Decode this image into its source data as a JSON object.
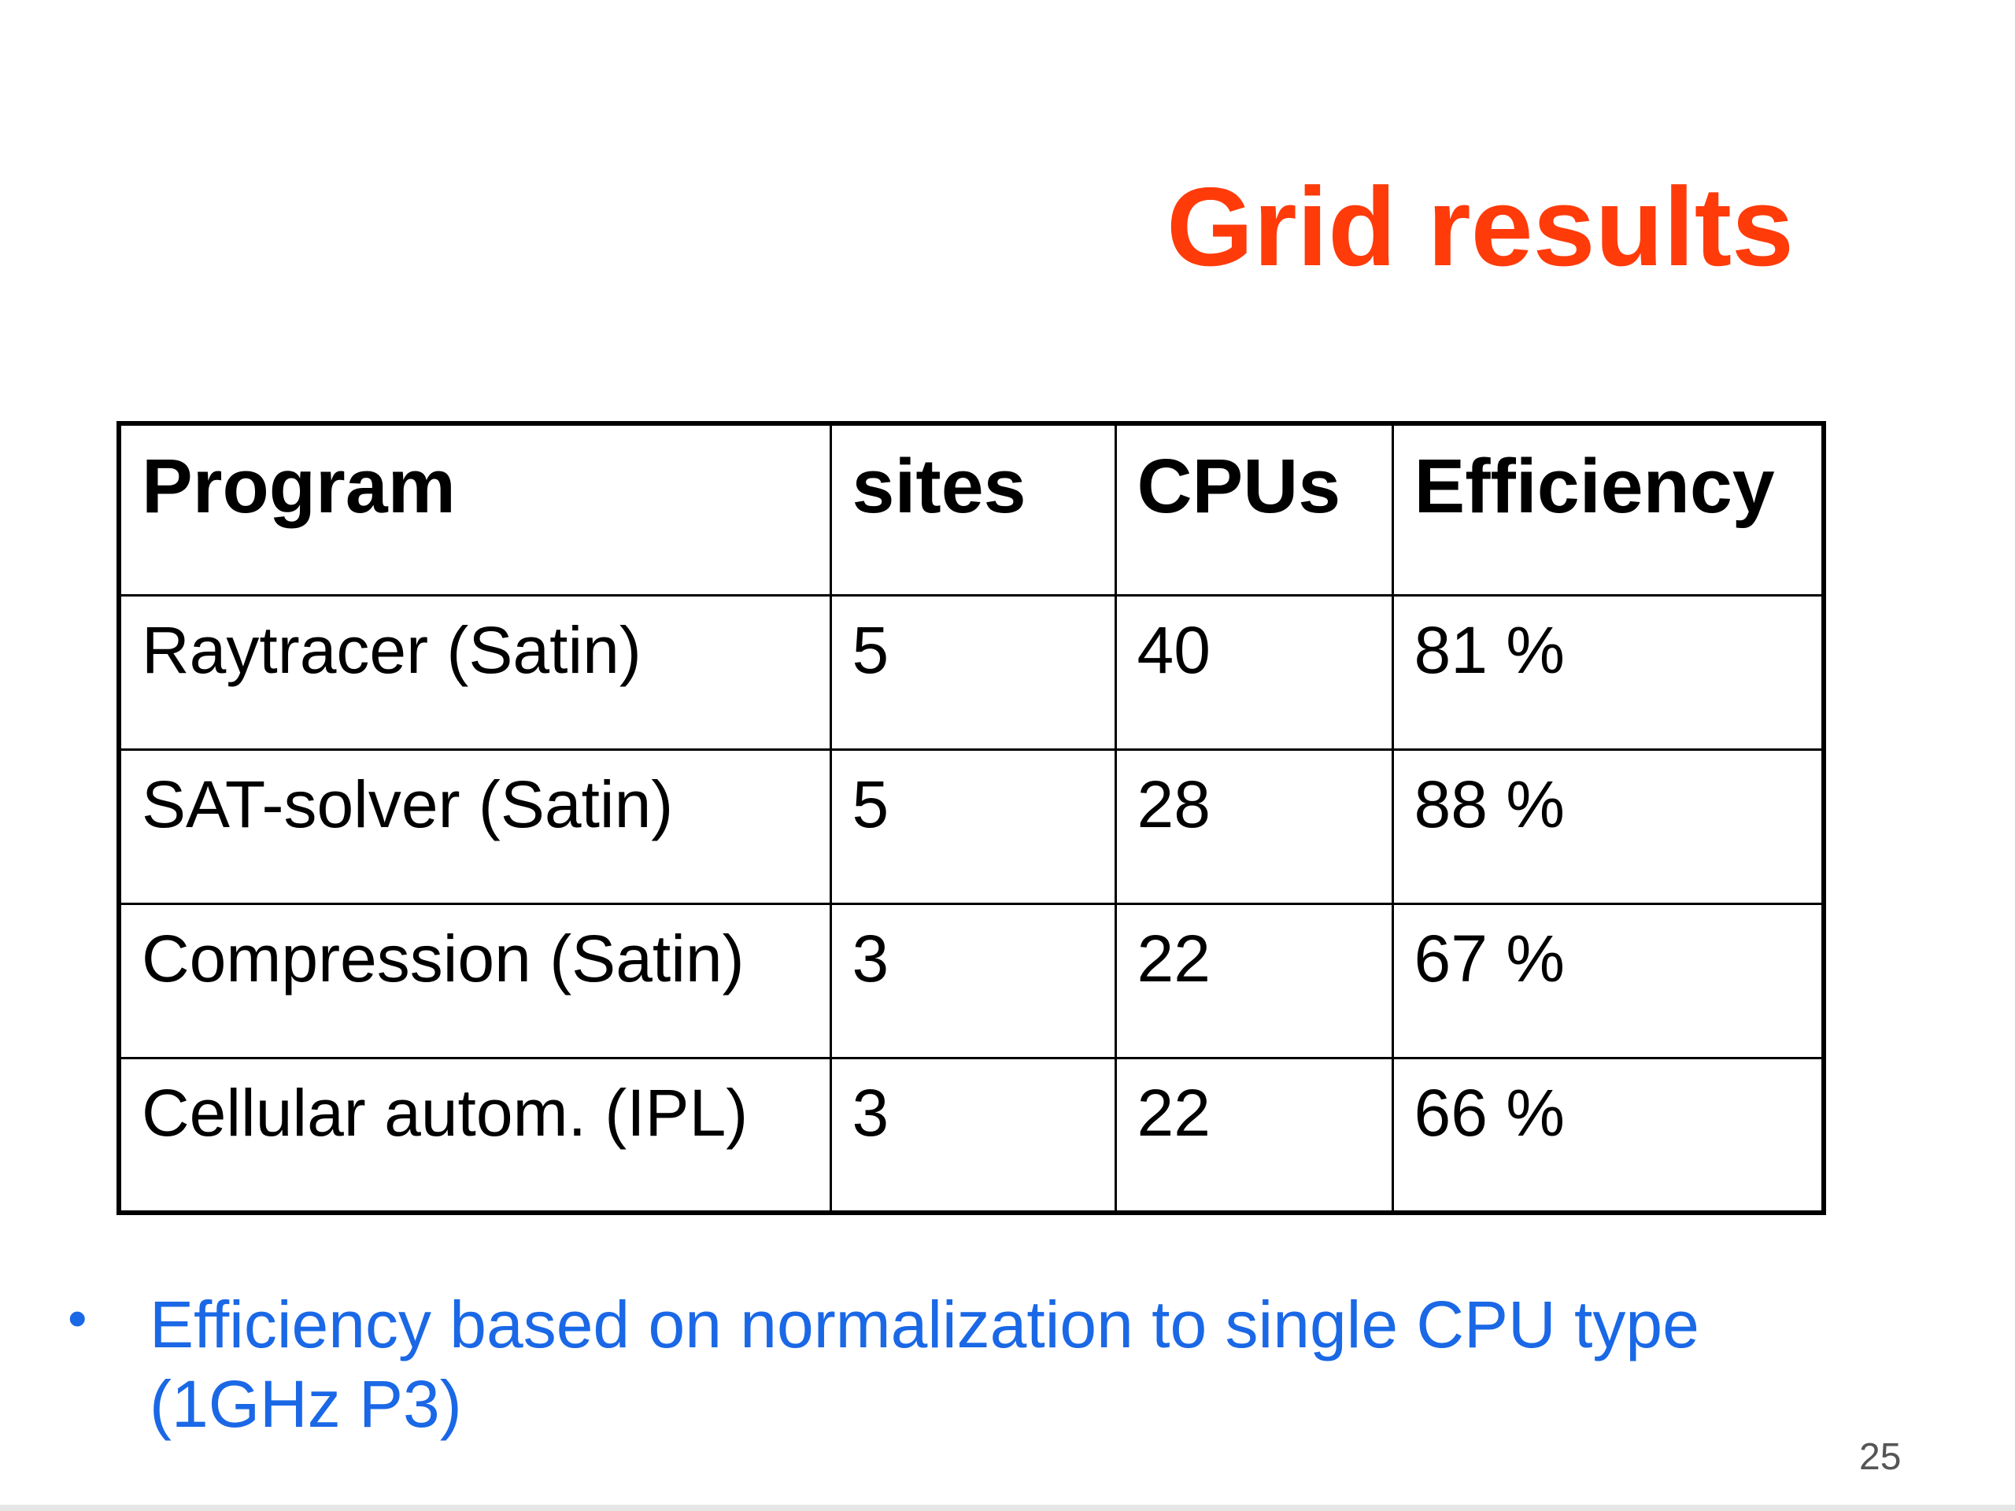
{
  "slide": {
    "title": "Grid results",
    "page_number": "25"
  },
  "table": {
    "headers": [
      "Program",
      "sites",
      "CPUs",
      "Efficiency"
    ],
    "rows": [
      [
        "Raytracer (Satin)",
        "5",
        "40",
        "81 %"
      ],
      [
        "SAT-solver (Satin)",
        "5",
        "28",
        "88 %"
      ],
      [
        "Compression (Satin)",
        "3",
        "22",
        "67 %"
      ],
      [
        "Cellular autom. (IPL)",
        "3",
        "22",
        "66 %"
      ]
    ]
  },
  "notes": [
    "Efficiency based on normalization to single CPU type (1GHz P3)"
  ],
  "colors": {
    "title": "#ff3b0a",
    "note": "#1a68e6",
    "text": "#000000"
  }
}
